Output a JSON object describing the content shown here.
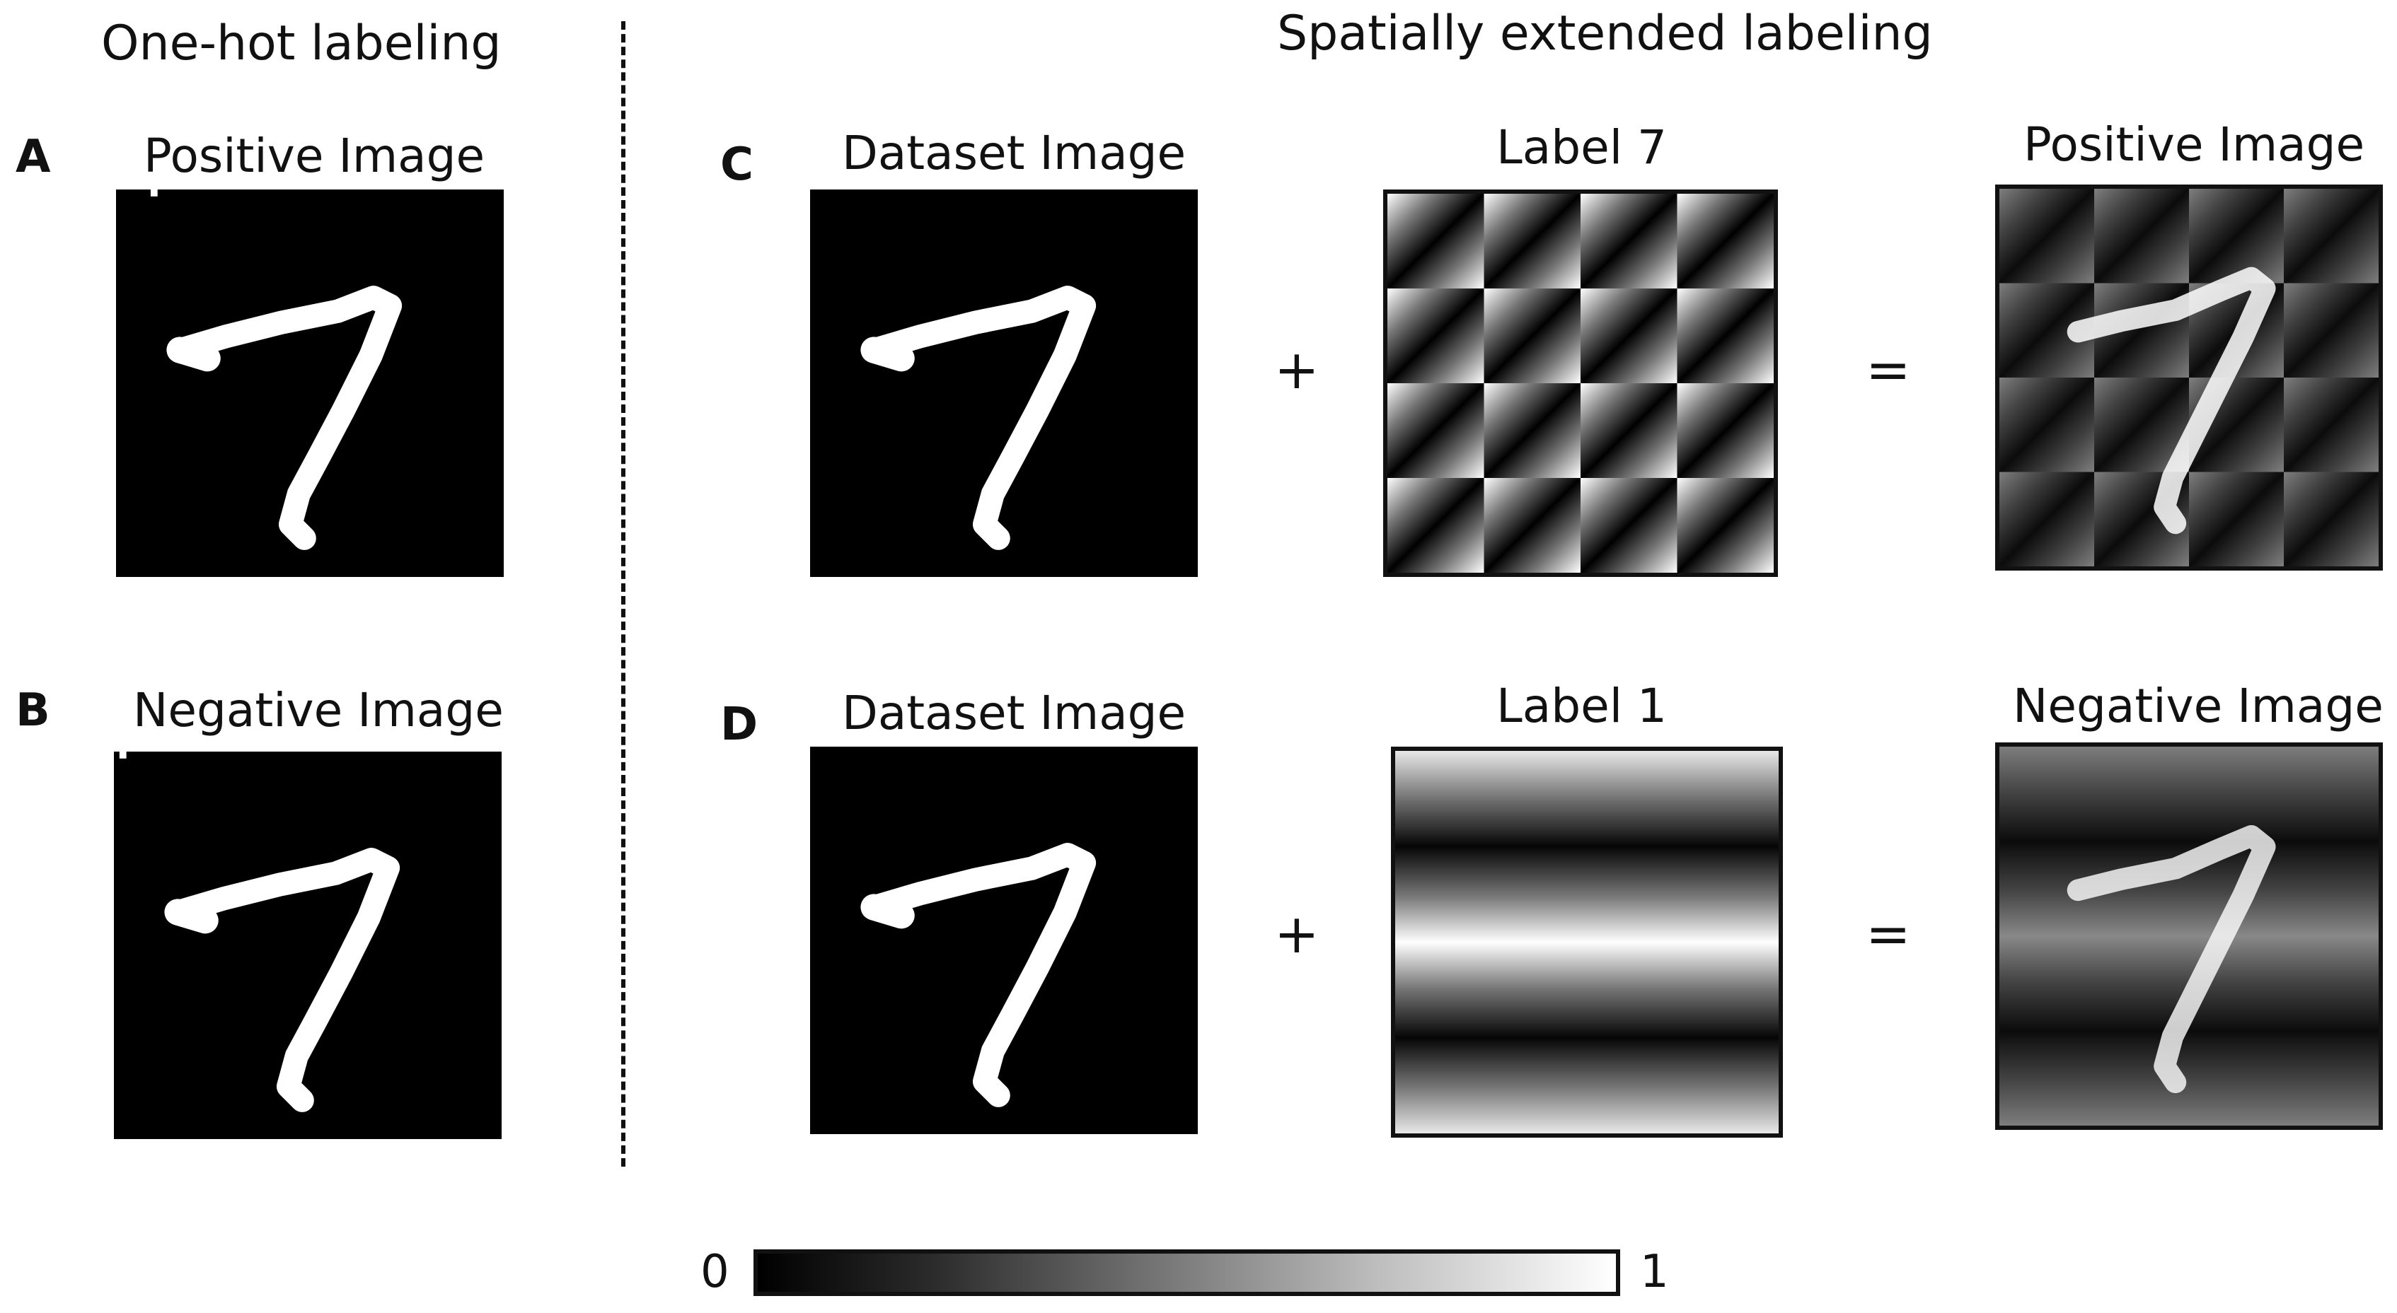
{
  "section_titles": {
    "left": "One-hot labeling",
    "right": "Spatially extended labeling"
  },
  "panels": {
    "A": {
      "letter": "A",
      "caption": "Positive Image"
    },
    "B": {
      "letter": "B",
      "caption": "Negative Image"
    },
    "C": {
      "letter": "C",
      "dataset_caption": "Dataset Image",
      "label_caption": "Label 7",
      "result_caption": "Positive Image",
      "plus": "+",
      "equals": "="
    },
    "D": {
      "letter": "D",
      "dataset_caption": "Dataset Image",
      "label_caption": "Label 1",
      "result_caption": "Negative Image",
      "plus": "+",
      "equals": "="
    }
  },
  "colorbar": {
    "min_label": "0",
    "max_label": "1"
  }
}
